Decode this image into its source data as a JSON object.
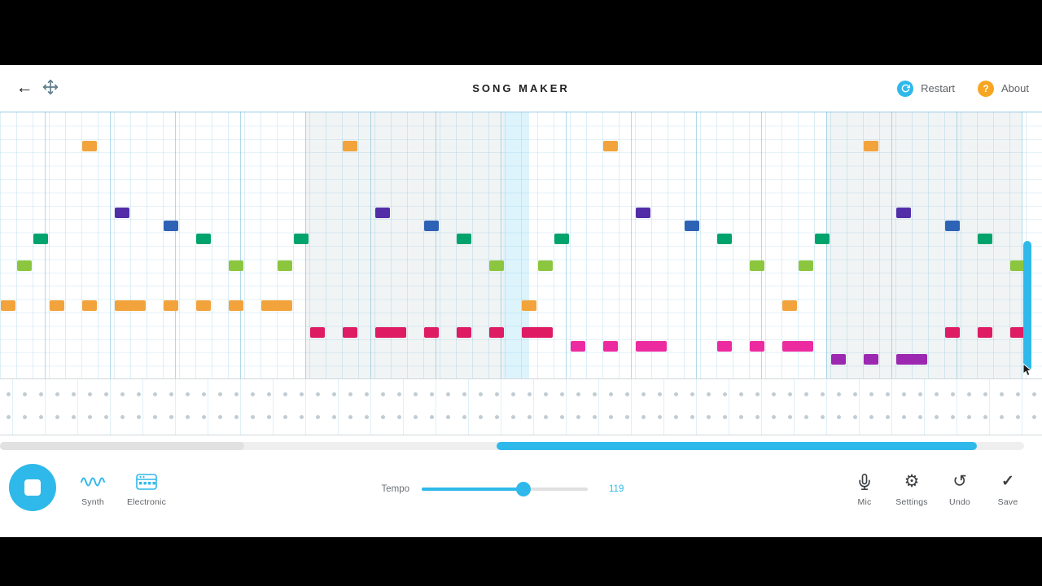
{
  "header": {
    "title": "SONG MAKER",
    "restart": "Restart",
    "about": "About",
    "help_glyph": "?"
  },
  "icons": {
    "back": "←",
    "settings": "⚙",
    "undo": "↺",
    "save": "✓"
  },
  "instruments": {
    "melody": "Synth",
    "percussion": "Electronic"
  },
  "tempo": {
    "label": "Tempo",
    "value": "119"
  },
  "actions": {
    "mic": "Mic",
    "settings": "Settings",
    "undo": "Undo",
    "save": "Save"
  },
  "colors": {
    "accent": "#2FB9EA",
    "about_badge": "#F6A623",
    "perc_dot": "#C2CCD2",
    "notes": {
      "or": "#F2A33C",
      "pu": "#512DA8",
      "bl": "#2E62B5",
      "te": "#00A36B",
      "gr": "#8CC63F",
      "cr": "#DE1B63",
      "ma": "#ED2BA1",
      "vi": "#9C27B0"
    }
  },
  "grid": {
    "cols": 64,
    "rows": 20,
    "percussion_rows": 2,
    "notes": [
      {
        "r": 2,
        "c": 5,
        "k": "or"
      },
      {
        "r": 2,
        "c": 21,
        "k": "or"
      },
      {
        "r": 2,
        "c": 37,
        "k": "or"
      },
      {
        "r": 2,
        "c": 53,
        "k": "or"
      },
      {
        "r": 7,
        "c": 7,
        "k": "pu"
      },
      {
        "r": 7,
        "c": 23,
        "k": "pu"
      },
      {
        "r": 7,
        "c": 39,
        "k": "pu"
      },
      {
        "r": 7,
        "c": 55,
        "k": "pu"
      },
      {
        "r": 8,
        "c": 10,
        "k": "bl"
      },
      {
        "r": 8,
        "c": 26,
        "k": "bl"
      },
      {
        "r": 8,
        "c": 42,
        "k": "bl"
      },
      {
        "r": 8,
        "c": 58,
        "k": "bl"
      },
      {
        "r": 9,
        "c": 2,
        "k": "te"
      },
      {
        "r": 9,
        "c": 12,
        "k": "te"
      },
      {
        "r": 9,
        "c": 18,
        "k": "te"
      },
      {
        "r": 9,
        "c": 28,
        "k": "te"
      },
      {
        "r": 9,
        "c": 34,
        "k": "te"
      },
      {
        "r": 9,
        "c": 44,
        "k": "te"
      },
      {
        "r": 9,
        "c": 50,
        "k": "te"
      },
      {
        "r": 9,
        "c": 60,
        "k": "te"
      },
      {
        "r": 11,
        "c": 1,
        "k": "gr"
      },
      {
        "r": 11,
        "c": 14,
        "k": "gr"
      },
      {
        "r": 11,
        "c": 17,
        "k": "gr"
      },
      {
        "r": 11,
        "c": 30,
        "k": "gr"
      },
      {
        "r": 11,
        "c": 33,
        "k": "gr"
      },
      {
        "r": 11,
        "c": 46,
        "k": "gr"
      },
      {
        "r": 11,
        "c": 49,
        "k": "gr"
      },
      {
        "r": 11,
        "c": 62,
        "k": "gr"
      },
      {
        "r": 14,
        "c": 0,
        "k": "or"
      },
      {
        "r": 14,
        "c": 3,
        "k": "or"
      },
      {
        "r": 14,
        "c": 5,
        "k": "or"
      },
      {
        "r": 14,
        "c": 7,
        "s": 2,
        "k": "or"
      },
      {
        "r": 14,
        "c": 10,
        "k": "or"
      },
      {
        "r": 14,
        "c": 12,
        "k": "or"
      },
      {
        "r": 14,
        "c": 14,
        "k": "or"
      },
      {
        "r": 14,
        "c": 16,
        "s": 2,
        "k": "or"
      },
      {
        "r": 14,
        "c": 32,
        "k": "or"
      },
      {
        "r": 14,
        "c": 48,
        "k": "or"
      },
      {
        "r": 16,
        "c": 19,
        "k": "cr"
      },
      {
        "r": 16,
        "c": 21,
        "k": "cr"
      },
      {
        "r": 16,
        "c": 23,
        "s": 2,
        "k": "cr"
      },
      {
        "r": 16,
        "c": 26,
        "k": "cr"
      },
      {
        "r": 16,
        "c": 28,
        "k": "cr"
      },
      {
        "r": 16,
        "c": 30,
        "k": "cr"
      },
      {
        "r": 16,
        "c": 32,
        "s": 2,
        "k": "cr"
      },
      {
        "r": 16,
        "c": 58,
        "k": "cr"
      },
      {
        "r": 16,
        "c": 60,
        "k": "cr"
      },
      {
        "r": 16,
        "c": 62,
        "k": "cr"
      },
      {
        "r": 17,
        "c": 35,
        "k": "ma"
      },
      {
        "r": 17,
        "c": 37,
        "k": "ma"
      },
      {
        "r": 17,
        "c": 39,
        "s": 2,
        "k": "ma"
      },
      {
        "r": 17,
        "c": 44,
        "k": "ma"
      },
      {
        "r": 17,
        "c": 46,
        "k": "ma"
      },
      {
        "r": 17,
        "c": 48,
        "s": 2,
        "k": "ma"
      },
      {
        "r": 18,
        "c": 51,
        "k": "vi"
      },
      {
        "r": 18,
        "c": 53,
        "k": "vi"
      },
      {
        "r": 18,
        "c": 55,
        "s": 2,
        "k": "vi"
      }
    ]
  }
}
